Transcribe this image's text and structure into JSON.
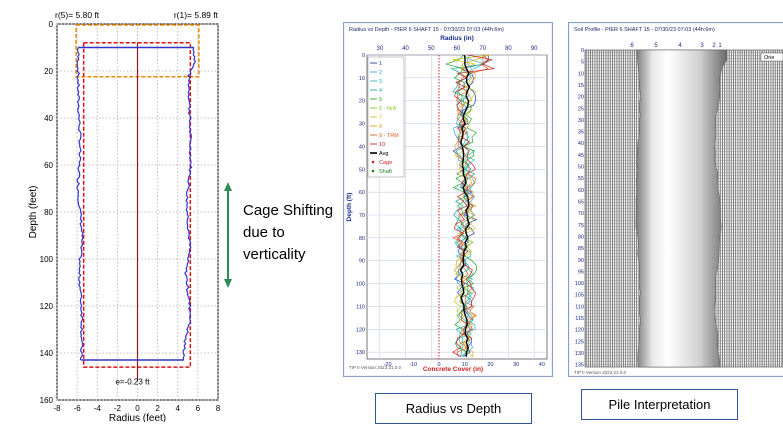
{
  "chart_data": [
    {
      "type": "line",
      "title": "",
      "top_labels": [
        "r(5)= 5.80 ft",
        "r(1)= 5.89 ft"
      ],
      "xlabel": "Radius (feet)",
      "ylabel": "Depth (feet)",
      "xlim": [
        -8,
        8
      ],
      "ylim": [
        0,
        160
      ],
      "y_inverted": true,
      "xticks": [
        "-8",
        "-6",
        "-4",
        "-2",
        "0",
        "2",
        "4",
        "6",
        "8"
      ],
      "yticks": [
        "0",
        "20",
        "40",
        "60",
        "80",
        "100",
        "120",
        "140",
        "160"
      ],
      "annotation": "e=-0.23 ft",
      "grid": true,
      "shaft_bottom_depth": 143,
      "cage_bottom_depth": 146,
      "top_box_depths": [
        0,
        22
      ],
      "top_red_line_depth": 8,
      "shaft_top_depth": 10,
      "right_edge_profile": [
        [
          10,
          5.6
        ],
        [
          16,
          5.7
        ],
        [
          22,
          5.1
        ],
        [
          40,
          5.2
        ],
        [
          60,
          5.3
        ],
        [
          75,
          4.9
        ],
        [
          95,
          5.2
        ],
        [
          105,
          4.8
        ],
        [
          125,
          5.3
        ],
        [
          135,
          4.7
        ],
        [
          143,
          4.6
        ]
      ],
      "left_edge_profile": [
        [
          10,
          -5.9
        ],
        [
          30,
          -5.9
        ],
        [
          50,
          -5.7
        ],
        [
          70,
          -5.9
        ],
        [
          90,
          -5.5
        ],
        [
          105,
          -5.8
        ],
        [
          125,
          -5.5
        ],
        [
          143,
          -5.6
        ]
      ],
      "colors": {
        "shaft": "#3333cc",
        "cage": "#dd1111",
        "box": "#ee8800",
        "center": "#dd1111"
      }
    },
    {
      "type": "line",
      "title": "Radius vs Depth - PIER 6 SHAFT 15 - 07/30/23 07:03 (44h:6m)",
      "xlabel_top": "Radius (in)",
      "xlabel_bottom": "Concrete Cover (in)",
      "ylabel": "Depth (ft)",
      "xticks_top": [
        "30",
        "40",
        "50",
        "60",
        "70",
        "80",
        "90"
      ],
      "xticks_bottom": [
        "-20",
        "-10",
        "0",
        "10",
        "20",
        "30",
        "40"
      ],
      "yticks": [
        "0",
        "10",
        "20",
        "30",
        "40",
        "50",
        "60",
        "70",
        "80",
        "90",
        "100",
        "110",
        "120",
        "130"
      ],
      "xlim_radius": [
        25,
        95
      ],
      "ylim": [
        0,
        133
      ],
      "legend": [
        "1",
        "2",
        "3",
        "4",
        "5",
        "6 - N/A",
        "7",
        "8",
        "9 - TRM",
        "10",
        "Avg",
        "Cage",
        "Shaft"
      ],
      "legend_colors": [
        "#1f3fbf",
        "#2aa7d8",
        "#29c0c0",
        "#20b0a0",
        "#28a828",
        "#88cc22",
        "#c8c820",
        "#e8a020",
        "#e06020",
        "#d02020",
        "#000000",
        "#d02020",
        "#208020"
      ],
      "cage_radius": 53,
      "footer": "TIP II Version 2022.21.0.0"
    },
    {
      "type": "heatmap",
      "title": "Soil Profile - PIER 6 SHAFT 15 - 07/30/23 07:03 (44h:6m)",
      "top_ticks": [
        "6",
        "5",
        "4",
        "3",
        "2",
        "1"
      ],
      "yticks": [
        "0",
        "5",
        "10",
        "15",
        "20",
        "25",
        "30",
        "35",
        "40",
        "45",
        "50",
        "55",
        "60",
        "65",
        "70",
        "75",
        "80",
        "85",
        "90",
        "95",
        "100",
        "105",
        "110",
        "115",
        "120",
        "125",
        "130",
        "135"
      ],
      "side_label": "Orie",
      "footer": "TIP II Version 2022.21.0.0"
    }
  ],
  "annotation": {
    "lines": [
      "Cage Shifting",
      "due to",
      "verticality"
    ]
  },
  "captions": {
    "radius_vs_depth": "Radius vs Depth",
    "pile_interpretation": "Pile Interpretation"
  }
}
